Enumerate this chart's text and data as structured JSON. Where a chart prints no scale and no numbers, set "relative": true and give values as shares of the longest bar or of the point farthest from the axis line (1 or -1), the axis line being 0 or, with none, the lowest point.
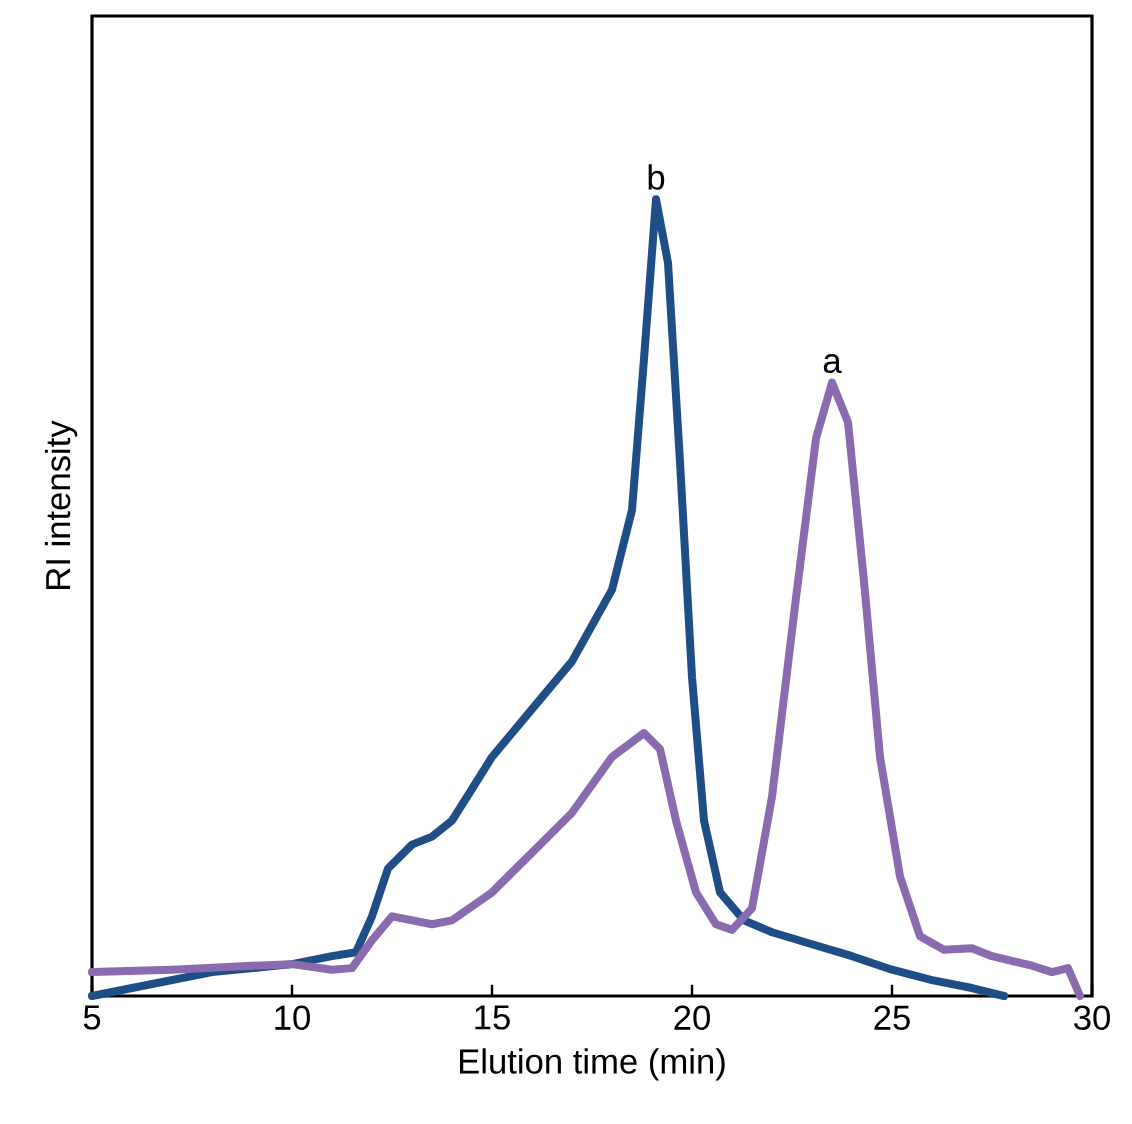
{
  "chart_data": {
    "type": "line",
    "relative": true,
    "xlabel": "Elution time (min)",
    "ylabel": "RI intensity",
    "xlim": [
      5,
      30
    ],
    "xticks": [
      5,
      10,
      15,
      20,
      25,
      30
    ],
    "grid": false,
    "marker": "none",
    "line_style": "solid",
    "series": [
      {
        "color": "#1f4e86",
        "x": [
          5,
          6,
          8,
          10,
          11,
          11.6,
          12,
          12.4,
          13,
          13.5,
          14,
          14.5,
          15,
          16,
          17,
          18,
          18.5,
          18.8,
          19.1,
          19.4,
          19.7,
          20,
          20.3,
          20.7,
          21.3,
          22,
          23,
          24,
          25,
          26,
          27,
          27.8
        ],
        "values": [
          0,
          0.01,
          0.03,
          0.04,
          0.05,
          0.055,
          0.1,
          0.16,
          0.19,
          0.2,
          0.22,
          0.26,
          0.3,
          0.36,
          0.42,
          0.51,
          0.61,
          0.8,
          1,
          0.92,
          0.67,
          0.4,
          0.22,
          0.13,
          0.095,
          0.08,
          0.065,
          0.05,
          0.033,
          0.02,
          0.01,
          0
        ]
      },
      {
        "color": "#8a6bb0",
        "x": [
          5,
          7,
          9,
          10,
          11,
          11.5,
          12,
          12.5,
          13.5,
          14,
          15,
          16,
          17,
          18,
          18.8,
          19.2,
          19.6,
          20.1,
          20.6,
          21,
          21.5,
          22,
          22.6,
          23.1,
          23.5,
          23.9,
          24.3,
          24.7,
          25.2,
          25.7,
          26.3,
          27,
          27.5,
          28.5,
          29,
          29.4,
          29.7
        ],
        "values": [
          0.03,
          0.033,
          0.038,
          0.04,
          0.033,
          0.035,
          0.07,
          0.1,
          0.09,
          0.095,
          0.13,
          0.18,
          0.23,
          0.3,
          0.33,
          0.31,
          0.22,
          0.13,
          0.09,
          0.083,
          0.11,
          0.25,
          0.5,
          0.7,
          0.77,
          0.72,
          0.52,
          0.3,
          0.15,
          0.075,
          0.058,
          0.06,
          0.05,
          0.038,
          0.03,
          0.035,
          0
        ]
      }
    ],
    "annotations": [
      {
        "text": "b",
        "x": 19.1,
        "y": 1
      },
      {
        "text": "a",
        "x": 23.5,
        "y": 0.77
      }
    ]
  }
}
